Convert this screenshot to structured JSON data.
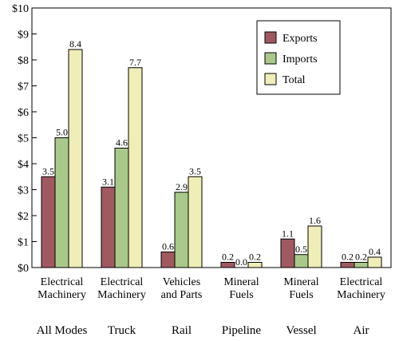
{
  "chart_data": {
    "type": "bar",
    "title": "",
    "xlabel": "",
    "ylabel": "",
    "ylim": [
      0,
      10
    ],
    "y_ticks": [
      "$0",
      "$1",
      "$2",
      "$3",
      "$4",
      "$5",
      "$6",
      "$7",
      "$8",
      "$9",
      "$10"
    ],
    "grid": false,
    "legend_position": "top-right",
    "categories": [
      {
        "label": [
          "Electrical",
          "Machinery"
        ],
        "mode": "All Modes"
      },
      {
        "label": [
          "Electrical",
          "Machinery"
        ],
        "mode": "Truck"
      },
      {
        "label": [
          "Vehicles",
          "and Parts"
        ],
        "mode": "Rail"
      },
      {
        "label": [
          "Mineral",
          "Fuels"
        ],
        "mode": "Pipeline"
      },
      {
        "label": [
          "Mineral",
          "Fuels"
        ],
        "mode": "Vessel"
      },
      {
        "label": [
          "Electrical",
          "Machinery"
        ],
        "mode": "Air"
      }
    ],
    "series": [
      {
        "name": "Exports",
        "color": "#a05a5f",
        "values": [
          3.5,
          3.1,
          0.6,
          0.2,
          1.1,
          0.2
        ],
        "labels": [
          "3.5",
          "3.1",
          "0.6",
          "0.2",
          "1.1",
          "0.2"
        ]
      },
      {
        "name": "Imports",
        "color": "#a8c98a",
        "values": [
          5.0,
          4.6,
          2.9,
          0.0,
          0.5,
          0.2
        ],
        "labels": [
          "5.0",
          "4.6",
          "2.9",
          "0.0",
          "0.5",
          "0.2"
        ]
      },
      {
        "name": "Total",
        "color": "#efeeb6",
        "values": [
          8.4,
          7.7,
          3.5,
          0.2,
          1.6,
          0.4
        ],
        "labels": [
          "8.4",
          "7.7",
          "3.5",
          "0.2",
          "1.6",
          "0.4"
        ]
      }
    ]
  }
}
